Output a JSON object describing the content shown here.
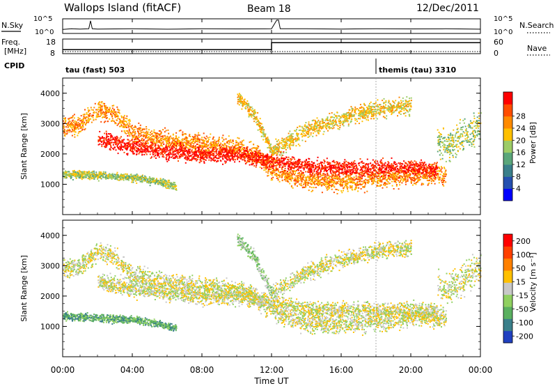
{
  "header": {
    "station": "Wallops Island (fitACF)",
    "beam": "Beam 18",
    "date": "12/Dec/2011"
  },
  "chart_data": [
    {
      "type": "line",
      "name": "noise-panel",
      "left_label": "N.Sky",
      "left_ticks": [
        "10^5",
        "10^0"
      ],
      "right_label": "N.Search",
      "right_ticks": [
        "10^5",
        "10^0"
      ],
      "x": [
        0,
        0.5,
        1,
        1.5,
        1.6,
        1.7,
        2,
        4,
        6,
        8,
        10,
        12,
        12.3,
        12.4,
        12.5,
        14,
        16,
        18,
        20,
        22,
        24
      ],
      "values": [
        0.25,
        0.3,
        0.28,
        0.3,
        0.9,
        0.3,
        0.28,
        0.3,
        0.27,
        0.3,
        0.29,
        0.3,
        0.95,
        0.95,
        0.3,
        0.3,
        0.28,
        0.3,
        0.29,
        0.3,
        0.27
      ]
    },
    {
      "type": "line",
      "name": "frequency-panel",
      "left_label_line1": "Freq.",
      "left_label_line2": "[MHz]",
      "left_ticks": [
        "18",
        "8"
      ],
      "right_label": "Nave",
      "right_ticks": [
        "60",
        "0"
      ],
      "freq_x": [
        0,
        12,
        12,
        24
      ],
      "freq_mhz": [
        10.5,
        10.5,
        15.8,
        15.8
      ],
      "ylim": [
        8,
        18
      ]
    },
    {
      "type": "table",
      "name": "cpid-panel",
      "label": "CPID",
      "segments": [
        {
          "start_h": 0,
          "end_h": 18,
          "text": "tau (fast) 503"
        },
        {
          "start_h": 18,
          "end_h": 24,
          "text": "themis (tau) 3310"
        }
      ]
    },
    {
      "type": "heatmap",
      "name": "power-panel",
      "ylabel": "Slant Range [km]",
      "yticks": [
        "1000",
        "2000",
        "3000",
        "4000"
      ],
      "ylim": [
        0,
        4500
      ],
      "xlim": [
        0,
        24
      ],
      "colorbar_label": "Power [dB]",
      "colorbar_ticks": [
        "4",
        "8",
        "12",
        "16",
        "20",
        "24",
        "28"
      ],
      "colors": [
        "#0000ff",
        "#2550b0",
        "#3a7f8a",
        "#5aa67a",
        "#9dcc66",
        "#ffc000",
        "#ff8a00",
        "#ff4d00",
        "#ff0000"
      ],
      "bands": [
        {
          "x": [
            0,
            1,
            2,
            3,
            4,
            6,
            8,
            10,
            11,
            12,
            13,
            14,
            16,
            18,
            20,
            21,
            22
          ],
          "center": [
            2900,
            3000,
            3500,
            3300,
            2700,
            2450,
            2350,
            2200,
            2050,
            1500,
            1300,
            1150,
            1100,
            1200,
            1300,
            1350,
            1300
          ],
          "width": 300,
          "level": 6
        },
        {
          "x": [
            2,
            4,
            6,
            8,
            10,
            12,
            14,
            16,
            18,
            20,
            21.5
          ],
          "center": [
            2500,
            2250,
            2100,
            2000,
            2000,
            1800,
            1600,
            1550,
            1550,
            1550,
            1500
          ],
          "width": 250,
          "level": 8
        },
        {
          "x": [
            0,
            2,
            4,
            5.5,
            6.5
          ],
          "center": [
            1350,
            1300,
            1250,
            1100,
            950
          ],
          "width": 120,
          "level": 4
        },
        {
          "x": [
            10,
            11,
            12
          ],
          "center": [
            3900,
            3300,
            2100
          ],
          "width": 200,
          "level": 5
        },
        {
          "x": [
            12,
            14,
            16,
            18,
            20
          ],
          "center": [
            2100,
            2800,
            3200,
            3500,
            3600
          ],
          "width": 260,
          "level": 5
        },
        {
          "x": [
            21.5,
            22,
            23,
            24
          ],
          "center": [
            2500,
            2200,
            2600,
            3000
          ],
          "width": 500,
          "level": 4
        }
      ]
    },
    {
      "type": "heatmap",
      "name": "velocity-panel",
      "ylabel": "Slant Range [km]",
      "yticks": [
        "1000",
        "2000",
        "3000",
        "4000"
      ],
      "ylim": [
        0,
        4500
      ],
      "xlim": [
        0,
        24
      ],
      "colorbar_label": "Velocity [m s⁻¹]",
      "colorbar_ticks": [
        "200",
        "100",
        "50",
        "15",
        "-15",
        "-50",
        "-100",
        "-200"
      ],
      "colors": [
        "#2040c0",
        "#3a7f8a",
        "#5ab060",
        "#90d060",
        "#c8c8c8",
        "#ffc000",
        "#ff8000",
        "#ff4000",
        "#ff0000"
      ],
      "bands": [
        {
          "x": [
            0,
            1,
            2,
            3,
            4,
            6,
            8,
            10,
            11,
            12,
            13,
            14,
            16,
            18,
            20,
            21,
            22
          ],
          "center": [
            2900,
            3000,
            3500,
            3300,
            2700,
            2450,
            2350,
            2200,
            2050,
            1500,
            1300,
            1150,
            1100,
            1200,
            1300,
            1350,
            1300
          ],
          "width": 300,
          "level": 4
        },
        {
          "x": [
            2,
            4,
            6,
            8,
            10,
            12,
            14,
            16,
            18,
            20,
            21.5
          ],
          "center": [
            2500,
            2250,
            2100,
            2000,
            2000,
            1800,
            1600,
            1550,
            1550,
            1550,
            1500
          ],
          "width": 250,
          "level": 4
        },
        {
          "x": [
            0,
            2,
            4,
            5.5,
            6.5
          ],
          "center": [
            1350,
            1300,
            1250,
            1100,
            950
          ],
          "width": 120,
          "level": 2
        },
        {
          "x": [
            10,
            11,
            12
          ],
          "center": [
            3900,
            3300,
            2100
          ],
          "width": 200,
          "level": 3
        },
        {
          "x": [
            12,
            14,
            16,
            18,
            20
          ],
          "center": [
            2100,
            2800,
            3200,
            3500,
            3600
          ],
          "width": 260,
          "level": 4
        },
        {
          "x": [
            21.5,
            22,
            23,
            24
          ],
          "center": [
            2500,
            2200,
            2600,
            3000
          ],
          "width": 500,
          "level": 4
        }
      ]
    }
  ],
  "x_axis": {
    "ticks": [
      "00:00",
      "04:00",
      "08:00",
      "12:00",
      "16:00",
      "20:00",
      "00:00"
    ],
    "label": "Time UT"
  }
}
